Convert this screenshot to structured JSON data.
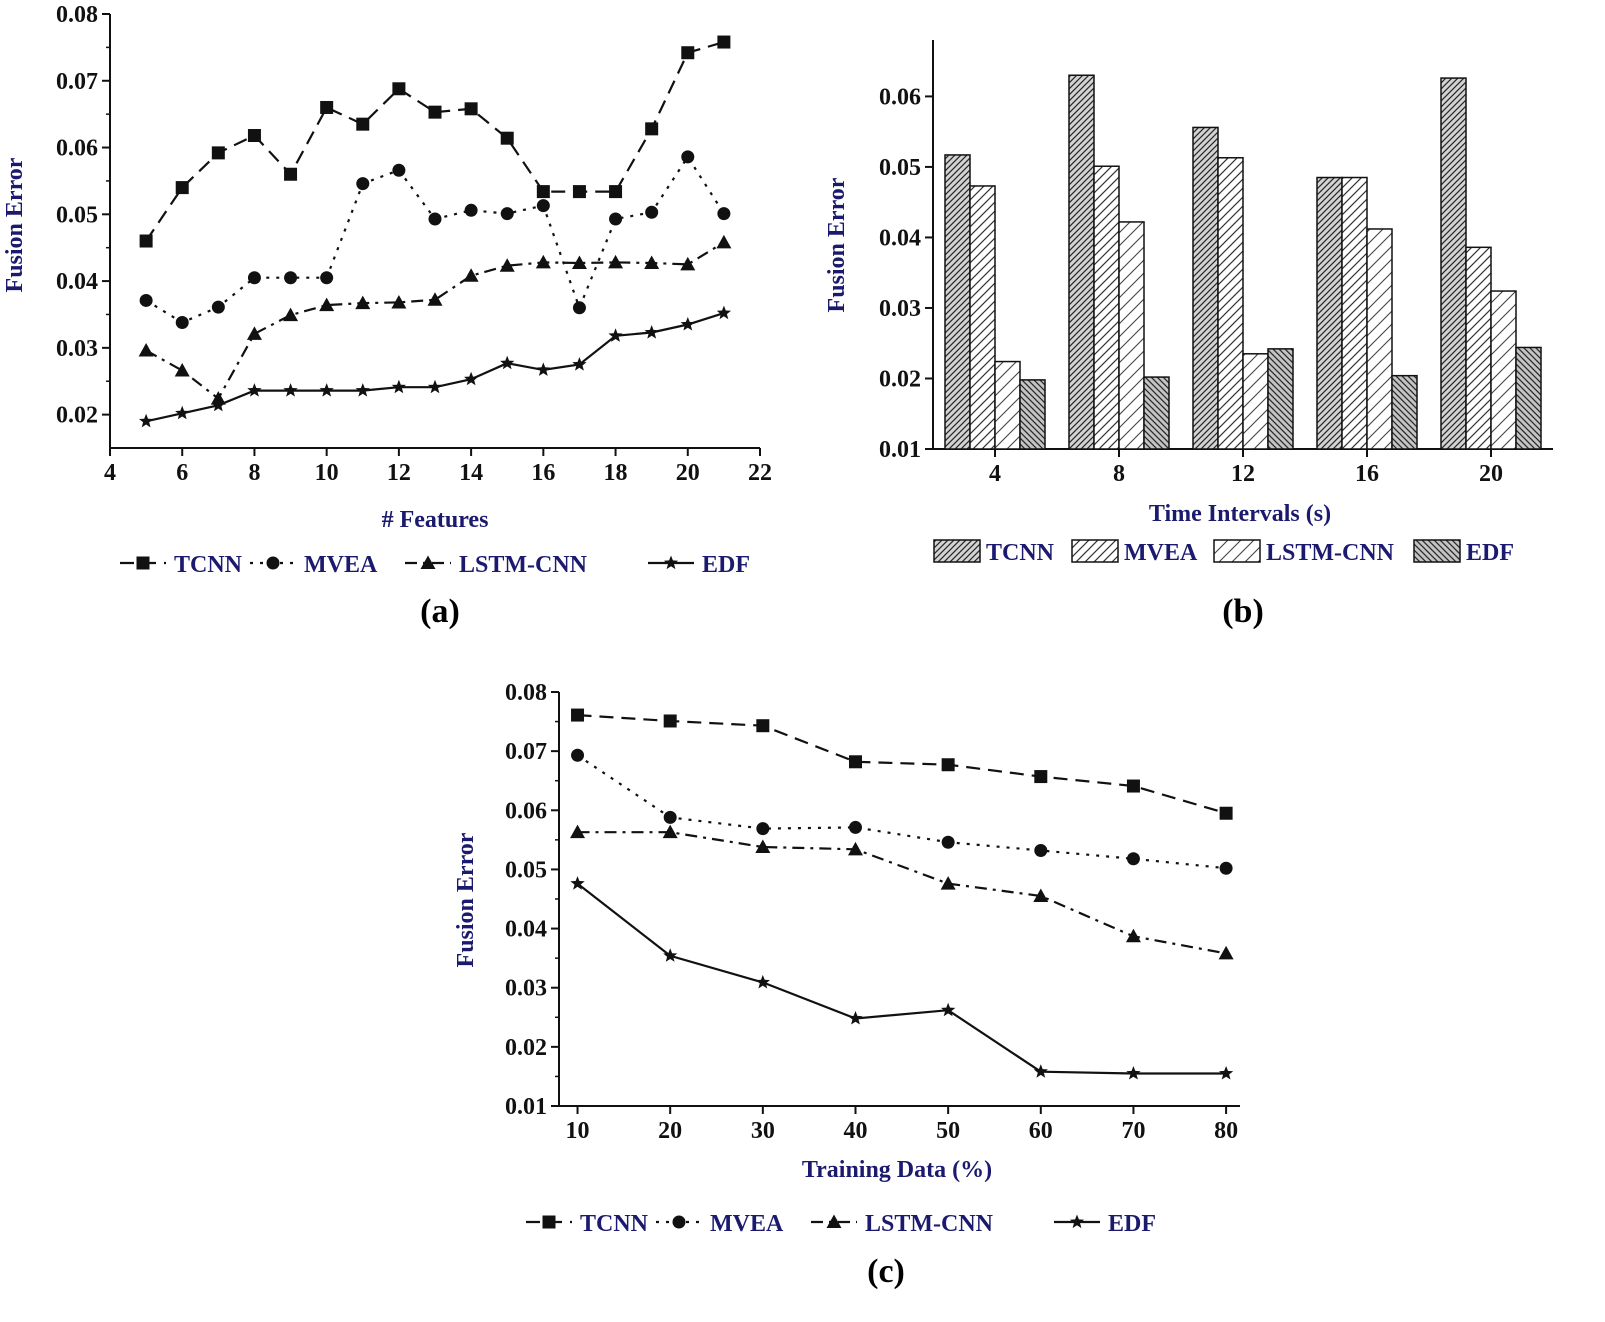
{
  "colors": {
    "label": "#1b1a6e",
    "ink": "#111111"
  },
  "chart_data": [
    {
      "id": "a",
      "type": "line",
      "caption": "(a)",
      "xlabel": "# Features",
      "ylabel": "Fusion Error",
      "xlim": [
        4,
        22
      ],
      "ylim": [
        0.015,
        0.08
      ],
      "xticks": [
        "4",
        "6",
        "8",
        "10",
        "12",
        "14",
        "16",
        "18",
        "20",
        "22"
      ],
      "yticks": [
        "0.02",
        "0.03",
        "0.04",
        "0.05",
        "0.06",
        "0.07",
        "0.08"
      ],
      "x": [
        5,
        6,
        7,
        8,
        9,
        10,
        11,
        12,
        13,
        14,
        15,
        16,
        17,
        18,
        19,
        20,
        21
      ],
      "series": [
        {
          "name": "TCNN",
          "marker": "square",
          "dash": "dashed",
          "values": [
            0.046,
            0.054,
            0.0592,
            0.0618,
            0.056,
            0.066,
            0.0635,
            0.0688,
            0.0653,
            0.0658,
            0.0614,
            0.0534,
            0.0534,
            0.0534,
            0.0628,
            0.0742,
            0.0758
          ]
        },
        {
          "name": "MVEA",
          "marker": "circle",
          "dash": "dotted",
          "values": [
            0.0371,
            0.0338,
            0.0361,
            0.0405,
            0.0405,
            0.0405,
            0.0546,
            0.0566,
            0.0493,
            0.0506,
            0.0501,
            0.0513,
            0.036,
            0.0493,
            0.0503,
            0.0586,
            0.0501
          ]
        },
        {
          "name": "LSTM-CNN",
          "marker": "triangle",
          "dash": "dashdot",
          "values": [
            0.0296,
            0.0266,
            0.0224,
            0.0321,
            0.0349,
            0.0364,
            0.0367,
            0.0368,
            0.0372,
            0.0408,
            0.0423,
            0.0428,
            0.0427,
            0.0428,
            0.0427,
            0.0425,
            0.0458
          ]
        },
        {
          "name": "EDF",
          "marker": "star",
          "dash": "solid",
          "values": [
            0.019,
            0.0202,
            0.0214,
            0.0236,
            0.0236,
            0.0236,
            0.0236,
            0.0241,
            0.0241,
            0.0253,
            0.0277,
            0.0267,
            0.0275,
            0.0318,
            0.0323,
            0.0335,
            0.0352
          ]
        }
      ]
    },
    {
      "id": "b",
      "type": "bar",
      "caption": "(b)",
      "xlabel": "Time Intervals (s)",
      "ylabel": "Fusion Error",
      "ylim": [
        0.01,
        0.068
      ],
      "yticks": [
        "0.01",
        "0.02",
        "0.03",
        "0.04",
        "0.05",
        "0.06"
      ],
      "categories": [
        "4",
        "8",
        "12",
        "16",
        "20"
      ],
      "series": [
        {
          "name": "TCNN",
          "values": [
            0.0517,
            0.063,
            0.0556,
            0.0485,
            0.0626
          ]
        },
        {
          "name": "MVEA",
          "values": [
            0.0473,
            0.0501,
            0.0513,
            0.0485,
            0.0386
          ]
        },
        {
          "name": "LSTM-CNN",
          "values": [
            0.0224,
            0.0422,
            0.0235,
            0.0412,
            0.0324
          ]
        },
        {
          "name": "EDF",
          "values": [
            0.0198,
            0.0202,
            0.0242,
            0.0204,
            0.0244
          ]
        }
      ]
    },
    {
      "id": "c",
      "type": "line",
      "caption": "(c)",
      "xlabel": "Training Data (%)",
      "ylabel": "Fusion Error",
      "xlim": [
        8,
        81.5
      ],
      "ylim": [
        0.01,
        0.08
      ],
      "xticks": [
        "10",
        "20",
        "30",
        "40",
        "50",
        "60",
        "70",
        "80"
      ],
      "yticks": [
        "0.01",
        "0.02",
        "0.03",
        "0.04",
        "0.05",
        "0.06",
        "0.07",
        "0.08"
      ],
      "x": [
        10,
        20,
        30,
        40,
        50,
        60,
        70,
        80
      ],
      "series": [
        {
          "name": "TCNN",
          "marker": "square",
          "dash": "dashed",
          "values": [
            0.0761,
            0.0751,
            0.0743,
            0.0682,
            0.0677,
            0.0657,
            0.0641,
            0.0595
          ]
        },
        {
          "name": "MVEA",
          "marker": "circle",
          "dash": "dotted",
          "values": [
            0.0693,
            0.0588,
            0.0569,
            0.0571,
            0.0546,
            0.0532,
            0.0518,
            0.0502
          ]
        },
        {
          "name": "LSTM-CNN",
          "marker": "triangle",
          "dash": "dashdot",
          "values": [
            0.0563,
            0.0563,
            0.0538,
            0.0534,
            0.0476,
            0.0455,
            0.0387,
            0.0358
          ]
        },
        {
          "name": "EDF",
          "marker": "star",
          "dash": "solid",
          "values": [
            0.0476,
            0.0354,
            0.0309,
            0.0248,
            0.0262,
            0.0158,
            0.0155,
            0.0155
          ]
        }
      ]
    }
  ]
}
